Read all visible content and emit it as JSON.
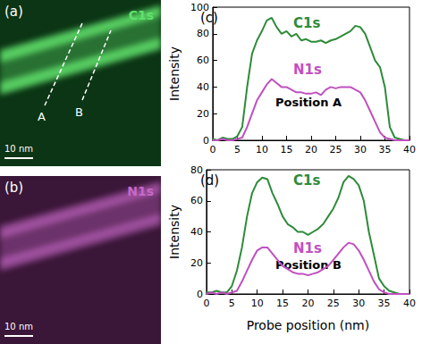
{
  "images": [
    {
      "panel": "(a)",
      "label": "C1s",
      "color": "#5fe06b",
      "lines": [
        "A",
        "B"
      ],
      "scale_bar": "10 nm"
    },
    {
      "panel": "(b)",
      "label": "N1s",
      "color": "#c868c8",
      "scale_bar": "10 nm"
    }
  ],
  "chart_data": [
    {
      "type": "line",
      "panel": "(c)",
      "annotation": "Position A",
      "ylabel": "Intensity",
      "x": [
        0,
        1,
        2,
        3,
        4,
        5,
        6,
        7,
        8,
        9,
        10,
        11,
        12,
        13,
        14,
        15,
        16,
        17,
        18,
        19,
        20,
        21,
        22,
        23,
        24,
        25,
        26,
        27,
        28,
        29,
        30,
        31,
        32,
        33,
        34,
        35,
        36,
        37,
        38,
        39,
        40
      ],
      "xlim": [
        0,
        40
      ],
      "xticks": [
        0,
        5,
        10,
        15,
        20,
        25,
        30,
        35,
        40
      ],
      "ylim": [
        0,
        100
      ],
      "yticks": [
        0,
        20,
        40,
        60,
        80,
        100
      ],
      "grid": false,
      "series": [
        {
          "name": "C1s",
          "color": "#2e8b3a",
          "values": [
            1,
            0,
            2,
            1,
            1,
            3,
            10,
            40,
            65,
            75,
            82,
            90,
            92,
            85,
            80,
            82,
            78,
            80,
            75,
            76,
            74,
            74,
            75,
            73,
            75,
            76,
            78,
            80,
            82,
            86,
            85,
            80,
            70,
            60,
            55,
            40,
            10,
            2,
            1,
            0,
            0
          ]
        },
        {
          "name": "N1s",
          "color": "#c050c0",
          "values": [
            0,
            0,
            1,
            0,
            0,
            1,
            2,
            10,
            20,
            30,
            36,
            42,
            46,
            43,
            40,
            40,
            38,
            36,
            36,
            35,
            35,
            36,
            34,
            38,
            40,
            39,
            40,
            40,
            40,
            38,
            36,
            30,
            22,
            14,
            6,
            2,
            1,
            0,
            0,
            0,
            0
          ]
        }
      ]
    },
    {
      "type": "line",
      "panel": "(d)",
      "annotation": "Position B",
      "ylabel": "Intensity",
      "xlabel": "Probe position (nm)",
      "x": [
        0,
        1,
        2,
        3,
        4,
        5,
        6,
        7,
        8,
        9,
        10,
        11,
        12,
        13,
        14,
        15,
        16,
        17,
        18,
        19,
        20,
        21,
        22,
        23,
        24,
        25,
        26,
        27,
        28,
        29,
        30,
        31,
        32,
        33,
        34,
        35,
        36,
        37,
        38,
        39,
        40
      ],
      "xlim": [
        0,
        40
      ],
      "xticks": [
        0,
        5,
        10,
        15,
        20,
        25,
        30,
        35,
        40
      ],
      "ylim": [
        0,
        80
      ],
      "yticks": [
        0,
        20,
        40,
        60,
        80
      ],
      "grid": false,
      "series": [
        {
          "name": "C1s",
          "color": "#2e8b3a",
          "values": [
            1,
            1,
            2,
            1,
            1,
            5,
            15,
            30,
            50,
            65,
            72,
            75,
            74,
            65,
            58,
            50,
            45,
            43,
            40,
            40,
            38,
            40,
            42,
            45,
            50,
            55,
            62,
            72,
            76,
            74,
            70,
            60,
            40,
            25,
            10,
            5,
            2,
            1,
            0,
            0,
            0
          ]
        },
        {
          "name": "N1s",
          "color": "#c050c0",
          "values": [
            0,
            1,
            0,
            1,
            0,
            1,
            2,
            8,
            15,
            22,
            28,
            30,
            30,
            26,
            22,
            18,
            16,
            14,
            13,
            13,
            12,
            13,
            14,
            16,
            18,
            22,
            26,
            30,
            33,
            32,
            28,
            22,
            15,
            8,
            3,
            1,
            0,
            0,
            0,
            0,
            0
          ]
        }
      ]
    }
  ]
}
